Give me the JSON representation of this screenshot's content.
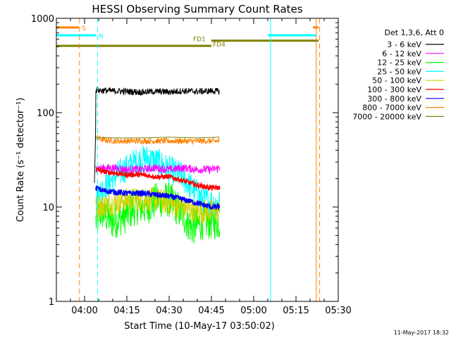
{
  "chart_data": {
    "type": "line",
    "title": "HESSI Observing Summary Count Rates",
    "xlabel": "Start Time (10-May-17 03:50:02)",
    "ylabel": "Count Rate (s⁻¹ detector⁻¹)",
    "yscale": "log",
    "ylim": [
      1,
      1000
    ],
    "xlim_minutes": [
      0,
      100
    ],
    "x_ticks": [
      "04:00",
      "04:15",
      "04:30",
      "04:45",
      "05:00",
      "05:15",
      "05:30"
    ],
    "x_tick_minutes": [
      10,
      25,
      40,
      55,
      70,
      85,
      100
    ],
    "y_ticks": [
      "1",
      "10",
      "100",
      "1000"
    ],
    "y_tick_values": [
      1,
      10,
      100,
      1000
    ],
    "legend_title": "Det 1,3,6, Att 0",
    "legend_position": "right",
    "series": [
      {
        "name": "3 - 6 keV",
        "color": "#000000",
        "x": [
          14,
          16,
          20,
          25,
          30,
          35,
          40,
          45,
          50,
          55,
          58
        ],
        "y": [
          175,
          172,
          170,
          168,
          165,
          168,
          166,
          170,
          168,
          170,
          168
        ],
        "noise": 0.08
      },
      {
        "name": "6 - 12 keV",
        "color": "#ff00ff",
        "x": [
          14,
          20,
          25,
          30,
          35,
          40,
          45,
          50,
          55,
          58
        ],
        "y": [
          26,
          26,
          25,
          25,
          26,
          25,
          26,
          25,
          25,
          26
        ],
        "noise": 0.1
      },
      {
        "name": "12 - 25 keV",
        "color": "#00ff00",
        "x": [
          14,
          16,
          20,
          24,
          28,
          32,
          36,
          40,
          44,
          48,
          52,
          56,
          58
        ],
        "y": [
          7,
          9,
          7,
          8,
          10,
          10,
          12,
          12,
          9,
          6,
          7,
          7,
          7
        ],
        "noise": 0.45
      },
      {
        "name": "25 - 50 keV",
        "color": "#00ffff",
        "x": [
          14,
          16,
          20,
          24,
          28,
          32,
          36,
          40,
          44,
          48,
          52,
          56,
          58
        ],
        "y": [
          12,
          15,
          20,
          25,
          30,
          33,
          30,
          25,
          22,
          16,
          12,
          11,
          11
        ],
        "noise": 0.35
      },
      {
        "name": "50 - 100 keV",
        "color": "#d2d200",
        "x": [
          14,
          20,
          25,
          30,
          35,
          40,
          45,
          50,
          55,
          58
        ],
        "y": [
          10,
          11,
          12,
          12,
          12,
          11,
          10,
          9,
          9,
          9
        ],
        "noise": 0.3
      },
      {
        "name": "100 - 300 keV",
        "color": "#ff0000",
        "x": [
          14,
          16,
          20,
          25,
          30,
          35,
          40,
          45,
          50,
          55,
          58
        ],
        "y": [
          25,
          24,
          23,
          22,
          22,
          21,
          21,
          19,
          17,
          16,
          16
        ],
        "noise": 0.06
      },
      {
        "name": "300 - 800 keV",
        "color": "#0000ff",
        "x": [
          14,
          16,
          20,
          25,
          30,
          35,
          40,
          45,
          50,
          55,
          58
        ],
        "y": [
          16,
          15,
          14.5,
          14,
          14,
          13.5,
          13,
          12,
          11,
          10,
          10
        ],
        "noise": 0.07
      },
      {
        "name": "800 - 7000 keV",
        "color": "#ff8000",
        "x": [
          14,
          16,
          20,
          25,
          30,
          35,
          40,
          45,
          50,
          55,
          58
        ],
        "y": [
          55,
          52,
          50,
          50,
          50,
          50,
          50,
          50,
          50,
          50,
          50
        ],
        "noise": 0.07
      },
      {
        "name": "7000 - 20000 keV",
        "color": "#808000",
        "x": [
          14,
          20,
          30,
          40,
          50,
          58
        ],
        "y": [
          55,
          54,
          54,
          55,
          54,
          55
        ],
        "noise": 0.0
      }
    ],
    "flag_bars": [
      {
        "label": "S",
        "color": "#ff8000",
        "y": 800,
        "segments": [
          [
            0,
            8
          ],
          [
            91,
            93
          ]
        ]
      },
      {
        "label": "N",
        "color": "#00ffff",
        "y": 660,
        "segments": [
          [
            0,
            14
          ],
          [
            75,
            92
          ]
        ]
      },
      {
        "label": "FD1",
        "color": "#808000",
        "y": 580,
        "segments": [
          [
            55,
            93
          ]
        ]
      },
      {
        "label": "FD4",
        "color": "#808000",
        "y": 510,
        "segments": [
          [
            0,
            55
          ]
        ]
      }
    ],
    "vlines": [
      {
        "x": 0,
        "color": "#00ffff",
        "style": "solid"
      },
      {
        "x": 8.2,
        "color": "#ff8000",
        "style": "dashed"
      },
      {
        "x": 14.6,
        "color": "#00ffff",
        "style": "dashed"
      },
      {
        "x": 76,
        "color": "#00ffff",
        "style": "solid"
      },
      {
        "x": 92.2,
        "color": "#ff8000",
        "style": "solid"
      },
      {
        "x": 93.4,
        "color": "#ff8000",
        "style": "dashed"
      }
    ],
    "timestamp": "11-May-2017 18:32"
  }
}
